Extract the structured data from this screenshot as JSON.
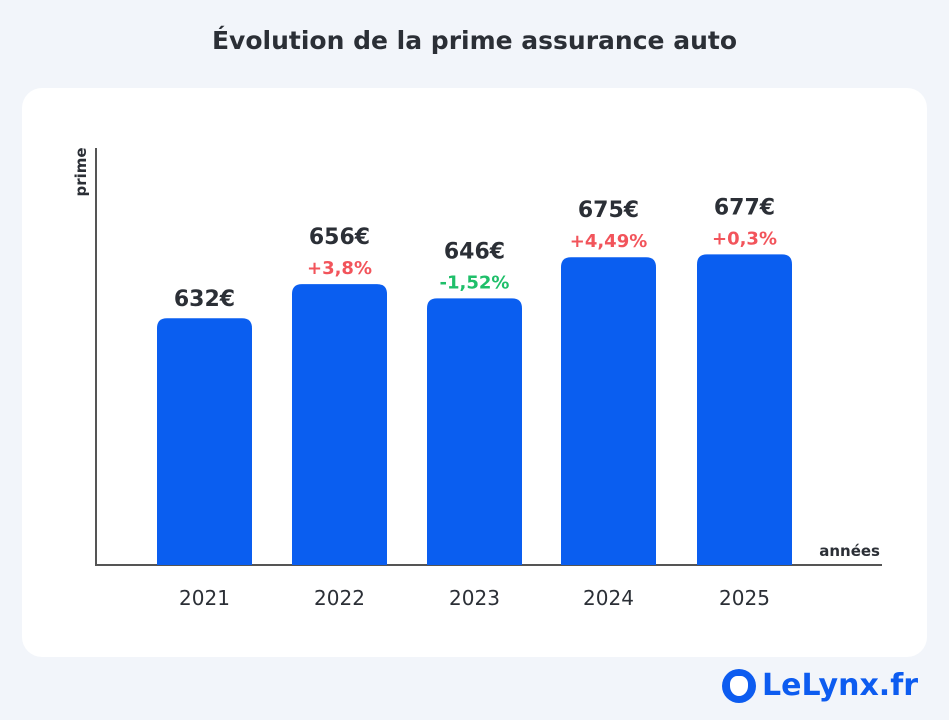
{
  "chart_data": {
    "type": "bar",
    "title": "Évolution de la prime assurance auto",
    "xlabel": "années",
    "ylabel": "prime",
    "categories": [
      "2021",
      "2022",
      "2023",
      "2024",
      "2025"
    ],
    "values": [
      632,
      656,
      646,
      675,
      677
    ],
    "value_labels": [
      "632€",
      "656€",
      "646€",
      "675€",
      "677€"
    ],
    "change_labels": [
      "",
      "+3,8%",
      "-1,52%",
      "+4,49%",
      "+0,3%"
    ],
    "ylim": [
      458,
      752
    ],
    "grid": false,
    "colors": {
      "bar": "#0a5ef0",
      "increase": "#f2545b",
      "decrease": "#1fbf6a",
      "text": "#2b2f36"
    }
  },
  "brand": {
    "logo_text": "LeLynx.fr"
  }
}
